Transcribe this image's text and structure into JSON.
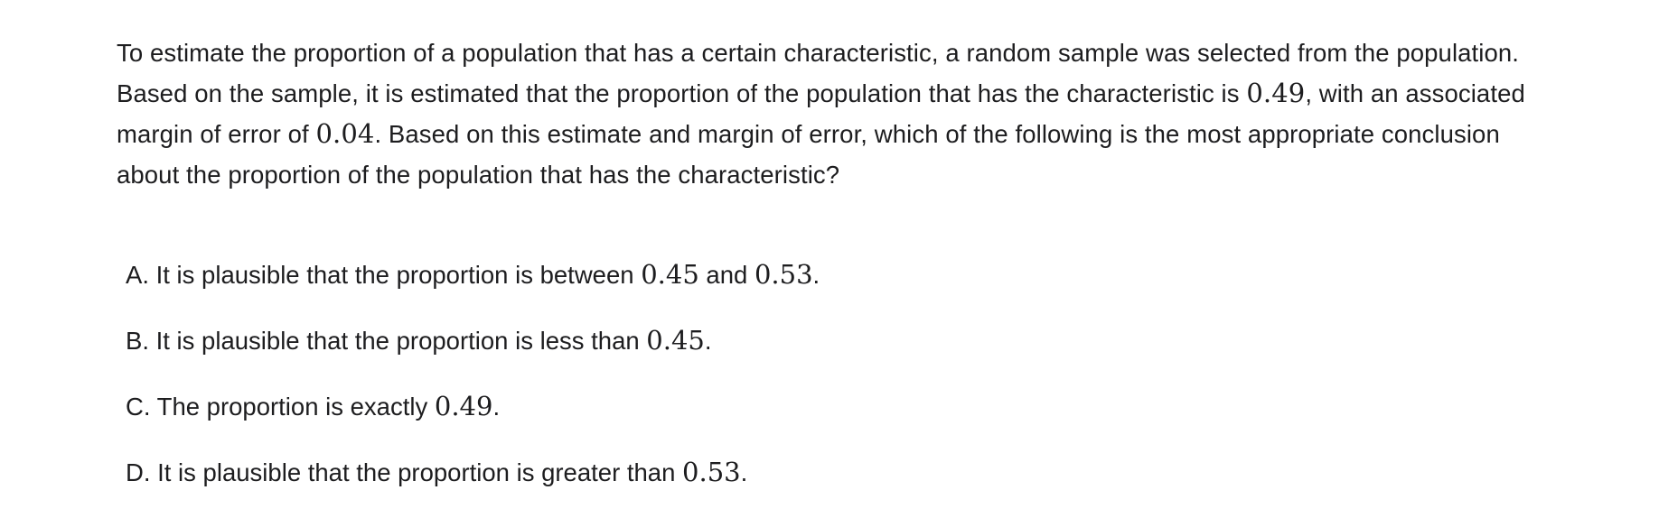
{
  "question": {
    "part1": "To estimate the proportion of a population that has a certain characteristic, a random sample was selected from the population. Based on the sample, it is estimated that the proportion of the population that has the characteristic is ",
    "value1": "0.49",
    "part2": ", with an associated margin of error of ",
    "value2": "0.04",
    "part3": ". Based on this estimate and margin of error, which of the following is the most appropriate conclusion about the proportion of the population that has the characteristic?"
  },
  "choices": [
    {
      "letter": "A.",
      "text_before": " It is plausible that the proportion is between ",
      "math1": "0.45",
      "text_middle": " and ",
      "math2": "0.53",
      "text_after": "."
    },
    {
      "letter": "B.",
      "text_before": " It is plausible that the proportion is less than ",
      "math1": "0.45",
      "text_after": "."
    },
    {
      "letter": "C.",
      "text_before": " The proportion is exactly ",
      "math1": "0.49",
      "text_after": "."
    },
    {
      "letter": "D.",
      "text_before": " It is plausible that the proportion is greater than ",
      "math1": "0.53",
      "text_after": "."
    }
  ]
}
